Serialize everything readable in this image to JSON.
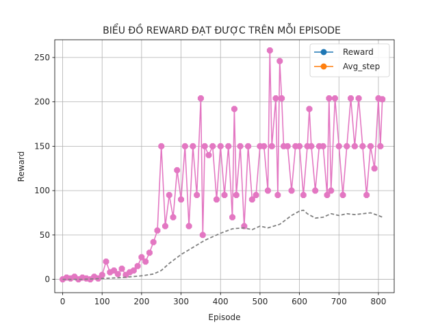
{
  "chart_data": {
    "type": "line",
    "title": "BIỂU ĐỒ REWARD ĐẠT ĐƯỢC TRÊN MỖI EPISODE",
    "xlabel": "Episode",
    "ylabel": "Reward",
    "xlim": [
      -20,
      840
    ],
    "ylim": [
      -15,
      270
    ],
    "xticks": [
      0,
      100,
      200,
      300,
      400,
      500,
      600,
      700,
      800
    ],
    "yticks": [
      0,
      50,
      100,
      150,
      200,
      250
    ],
    "grid": true,
    "legend_position": "top-right",
    "legend": [
      {
        "label": "Reward",
        "color": "#1f77b4"
      },
      {
        "label": "Avg_step",
        "color": "#ff7f0e"
      }
    ],
    "series": [
      {
        "name": "Reward",
        "color": "#e377c2",
        "marker": "octagon",
        "x": [
          0,
          10,
          20,
          30,
          40,
          50,
          60,
          70,
          80,
          90,
          100,
          110,
          120,
          130,
          140,
          150,
          160,
          170,
          180,
          190,
          200,
          210,
          220,
          230,
          240,
          250,
          260,
          270,
          280,
          290,
          300,
          310,
          320,
          330,
          340,
          350,
          355,
          360,
          370,
          380,
          390,
          400,
          410,
          420,
          430,
          435,
          440,
          450,
          460,
          470,
          480,
          490,
          500,
          510,
          520,
          525,
          530,
          540,
          545,
          550,
          555,
          560,
          570,
          580,
          590,
          600,
          610,
          620,
          625,
          630,
          640,
          650,
          660,
          670,
          675,
          680,
          690,
          700,
          710,
          720,
          730,
          740,
          750,
          760,
          770,
          780,
          790,
          800,
          805,
          810
        ],
        "values": [
          0,
          2,
          1,
          3,
          0,
          2,
          1,
          0,
          3,
          1,
          5,
          20,
          8,
          10,
          6,
          12,
          5,
          8,
          10,
          15,
          25,
          20,
          30,
          42,
          55,
          150,
          60,
          95,
          70,
          123,
          90,
          150,
          60,
          150,
          95,
          204,
          50,
          150,
          140,
          150,
          90,
          150,
          95,
          150,
          70,
          192,
          95,
          150,
          60,
          150,
          90,
          95,
          150,
          150,
          100,
          258,
          150,
          204,
          95,
          246,
          204,
          150,
          150,
          100,
          150,
          150,
          95,
          150,
          192,
          150,
          100,
          150,
          150,
          95,
          204,
          100,
          204,
          150,
          95,
          150,
          204,
          150,
          204,
          150,
          95,
          150,
          125,
          204,
          150,
          203
        ]
      },
      {
        "name": "Avg_step",
        "color": "#7f7f7f",
        "style": "dashed",
        "x": [
          0,
          50,
          100,
          150,
          200,
          230,
          250,
          270,
          300,
          330,
          360,
          400,
          430,
          460,
          480,
          500,
          520,
          550,
          580,
          600,
          610,
          620,
          640,
          660,
          680,
          700,
          720,
          740,
          760,
          780,
          800,
          810
        ],
        "values": [
          0,
          0,
          1,
          2,
          4,
          6,
          10,
          18,
          28,
          36,
          44,
          52,
          57,
          58,
          56,
          60,
          58,
          62,
          72,
          77,
          78,
          74,
          69,
          70,
          74,
          72,
          74,
          73,
          74,
          75,
          72,
          70
        ]
      }
    ]
  }
}
